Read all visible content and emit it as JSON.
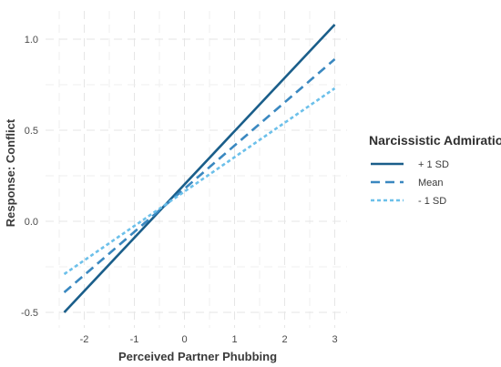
{
  "chart_data": {
    "type": "line",
    "xlabel": "Perceived Partner Phubbing",
    "ylabel": "Response: Conflict",
    "xlim": [
      -2.5,
      3.0
    ],
    "ylim": [
      -0.55,
      1.15
    ],
    "x_ticks": [
      -2,
      -1,
      0,
      1,
      2,
      3
    ],
    "x_tick_labels": [
      "-2",
      "-1",
      "0",
      "1",
      "2",
      "3"
    ],
    "y_ticks": [
      -0.5,
      0.0,
      0.5,
      1.0
    ],
    "y_tick_labels": [
      "-0.5",
      "0.0",
      "0.5",
      "1.0"
    ],
    "grid": true,
    "legend": {
      "title": "Narcissistic Admiration",
      "placement": "right"
    },
    "series": [
      {
        "name": "+ 1 SD",
        "color": "#1a5e8a",
        "dash": "solid",
        "x": [
          -2.4,
          3.0
        ],
        "y": [
          -0.5,
          1.08
        ]
      },
      {
        "name": "Mean",
        "color": "#3a88c0",
        "dash": "dashed",
        "x": [
          -2.4,
          3.0
        ],
        "y": [
          -0.39,
          0.89
        ]
      },
      {
        "name": "- 1 SD",
        "color": "#6cc0ea",
        "dash": "dotted",
        "x": [
          -2.4,
          3.0
        ],
        "y": [
          -0.29,
          0.73
        ]
      }
    ]
  }
}
